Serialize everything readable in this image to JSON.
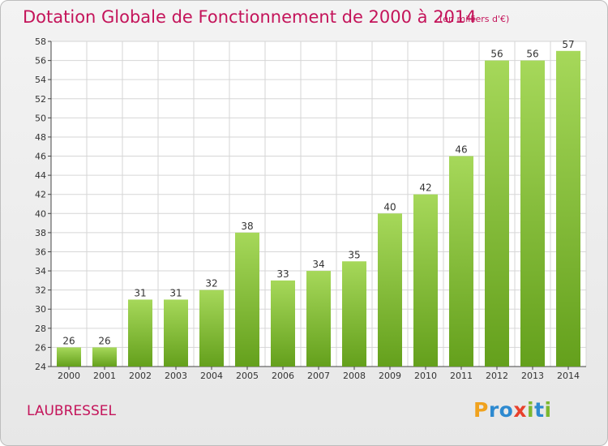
{
  "title": "Dotation Globale de Fonctionnement de 2000 à 2014",
  "subtitle": "(en milliers d'€)",
  "commune": "LAUBRESSEL",
  "logo": {
    "letters": [
      "P",
      "r",
      "o",
      "x",
      "i",
      "t",
      "i"
    ],
    "colors": [
      "#f0a21e",
      "#2e8ad0",
      "#2e8ad0",
      "#e8412c",
      "#7cb82f",
      "#2e8ad0",
      "#7cb82f"
    ]
  },
  "colors": {
    "bar_light": "#a6d85a",
    "bar_dark": "#64a01c",
    "title": "#c4145a",
    "grid": "#d6d6d6",
    "axis": "#444444"
  },
  "chart_data": {
    "type": "bar",
    "categories": [
      "2000",
      "2001",
      "2002",
      "2003",
      "2004",
      "2005",
      "2006",
      "2007",
      "2008",
      "2009",
      "2010",
      "2011",
      "2012",
      "2013",
      "2014"
    ],
    "values": [
      26,
      26,
      31,
      31,
      32,
      38,
      33,
      34,
      35,
      40,
      42,
      46,
      56,
      56,
      57
    ],
    "yticks": [
      24,
      26,
      28,
      30,
      32,
      34,
      36,
      38,
      40,
      42,
      44,
      46,
      48,
      50,
      52,
      54,
      56,
      58
    ],
    "ylim": [
      24,
      58
    ],
    "grid": true,
    "data_labels": true
  }
}
